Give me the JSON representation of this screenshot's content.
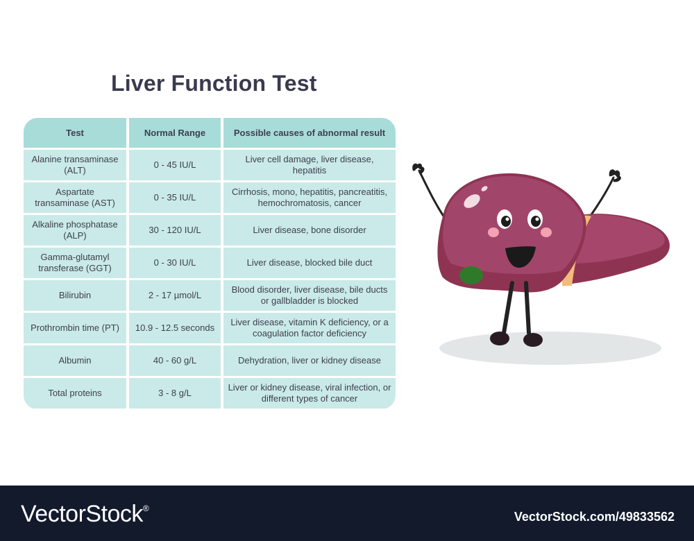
{
  "title": "Liver Function Test",
  "table": {
    "headers": [
      "Test",
      "Normal Range",
      "Possible causes of abnormal result"
    ],
    "rows": [
      {
        "test": "Alanine transaminase (ALT)",
        "range": "0 - 45 IU/L",
        "causes": "Liver cell damage, liver disease, hepatitis"
      },
      {
        "test": "Aspartate transaminase (AST)",
        "range": "0 - 35 IU/L",
        "causes": "Cirrhosis, mono, hepatitis, pancreatitis, hemochromatosis, cancer"
      },
      {
        "test": "Alkaline phosphatase (ALP)",
        "range": "30 - 120 IU/L",
        "causes": "Liver disease, bone disorder"
      },
      {
        "test": "Gamma-glutamyl transferase (GGT)",
        "range": "0 - 30 IU/L",
        "causes": "Liver disease, blocked bile duct"
      },
      {
        "test": "Bilirubin",
        "range": "2 - 17 µmol/L",
        "causes": "Blood disorder, liver disease, bile ducts or gallbladder is blocked"
      },
      {
        "test": "Prothrombin time (PT)",
        "range": "10.9 - 12.5 seconds",
        "causes": "Liver disease, vitamin K deficiency, or a coagulation factor deficiency"
      },
      {
        "test": "Albumin",
        "range": "40 - 60 g/L",
        "causes": "Dehydration, liver or kidney disease"
      },
      {
        "test": "Total proteins",
        "range": "3 - 8 g/L",
        "causes": "Liver or kidney disease, viral infection, or different types of cancer"
      }
    ]
  },
  "footer": {
    "brand": "VectorStock",
    "registered": "®",
    "credit": "VectorStock.com/49833562"
  },
  "colors": {
    "header_cell": "#a8dcd8",
    "body_cell": "#c9eae8",
    "liver": "#9a3a5c",
    "footer_bg": "#121a2c"
  },
  "illustration": "cartoon-liver-character"
}
